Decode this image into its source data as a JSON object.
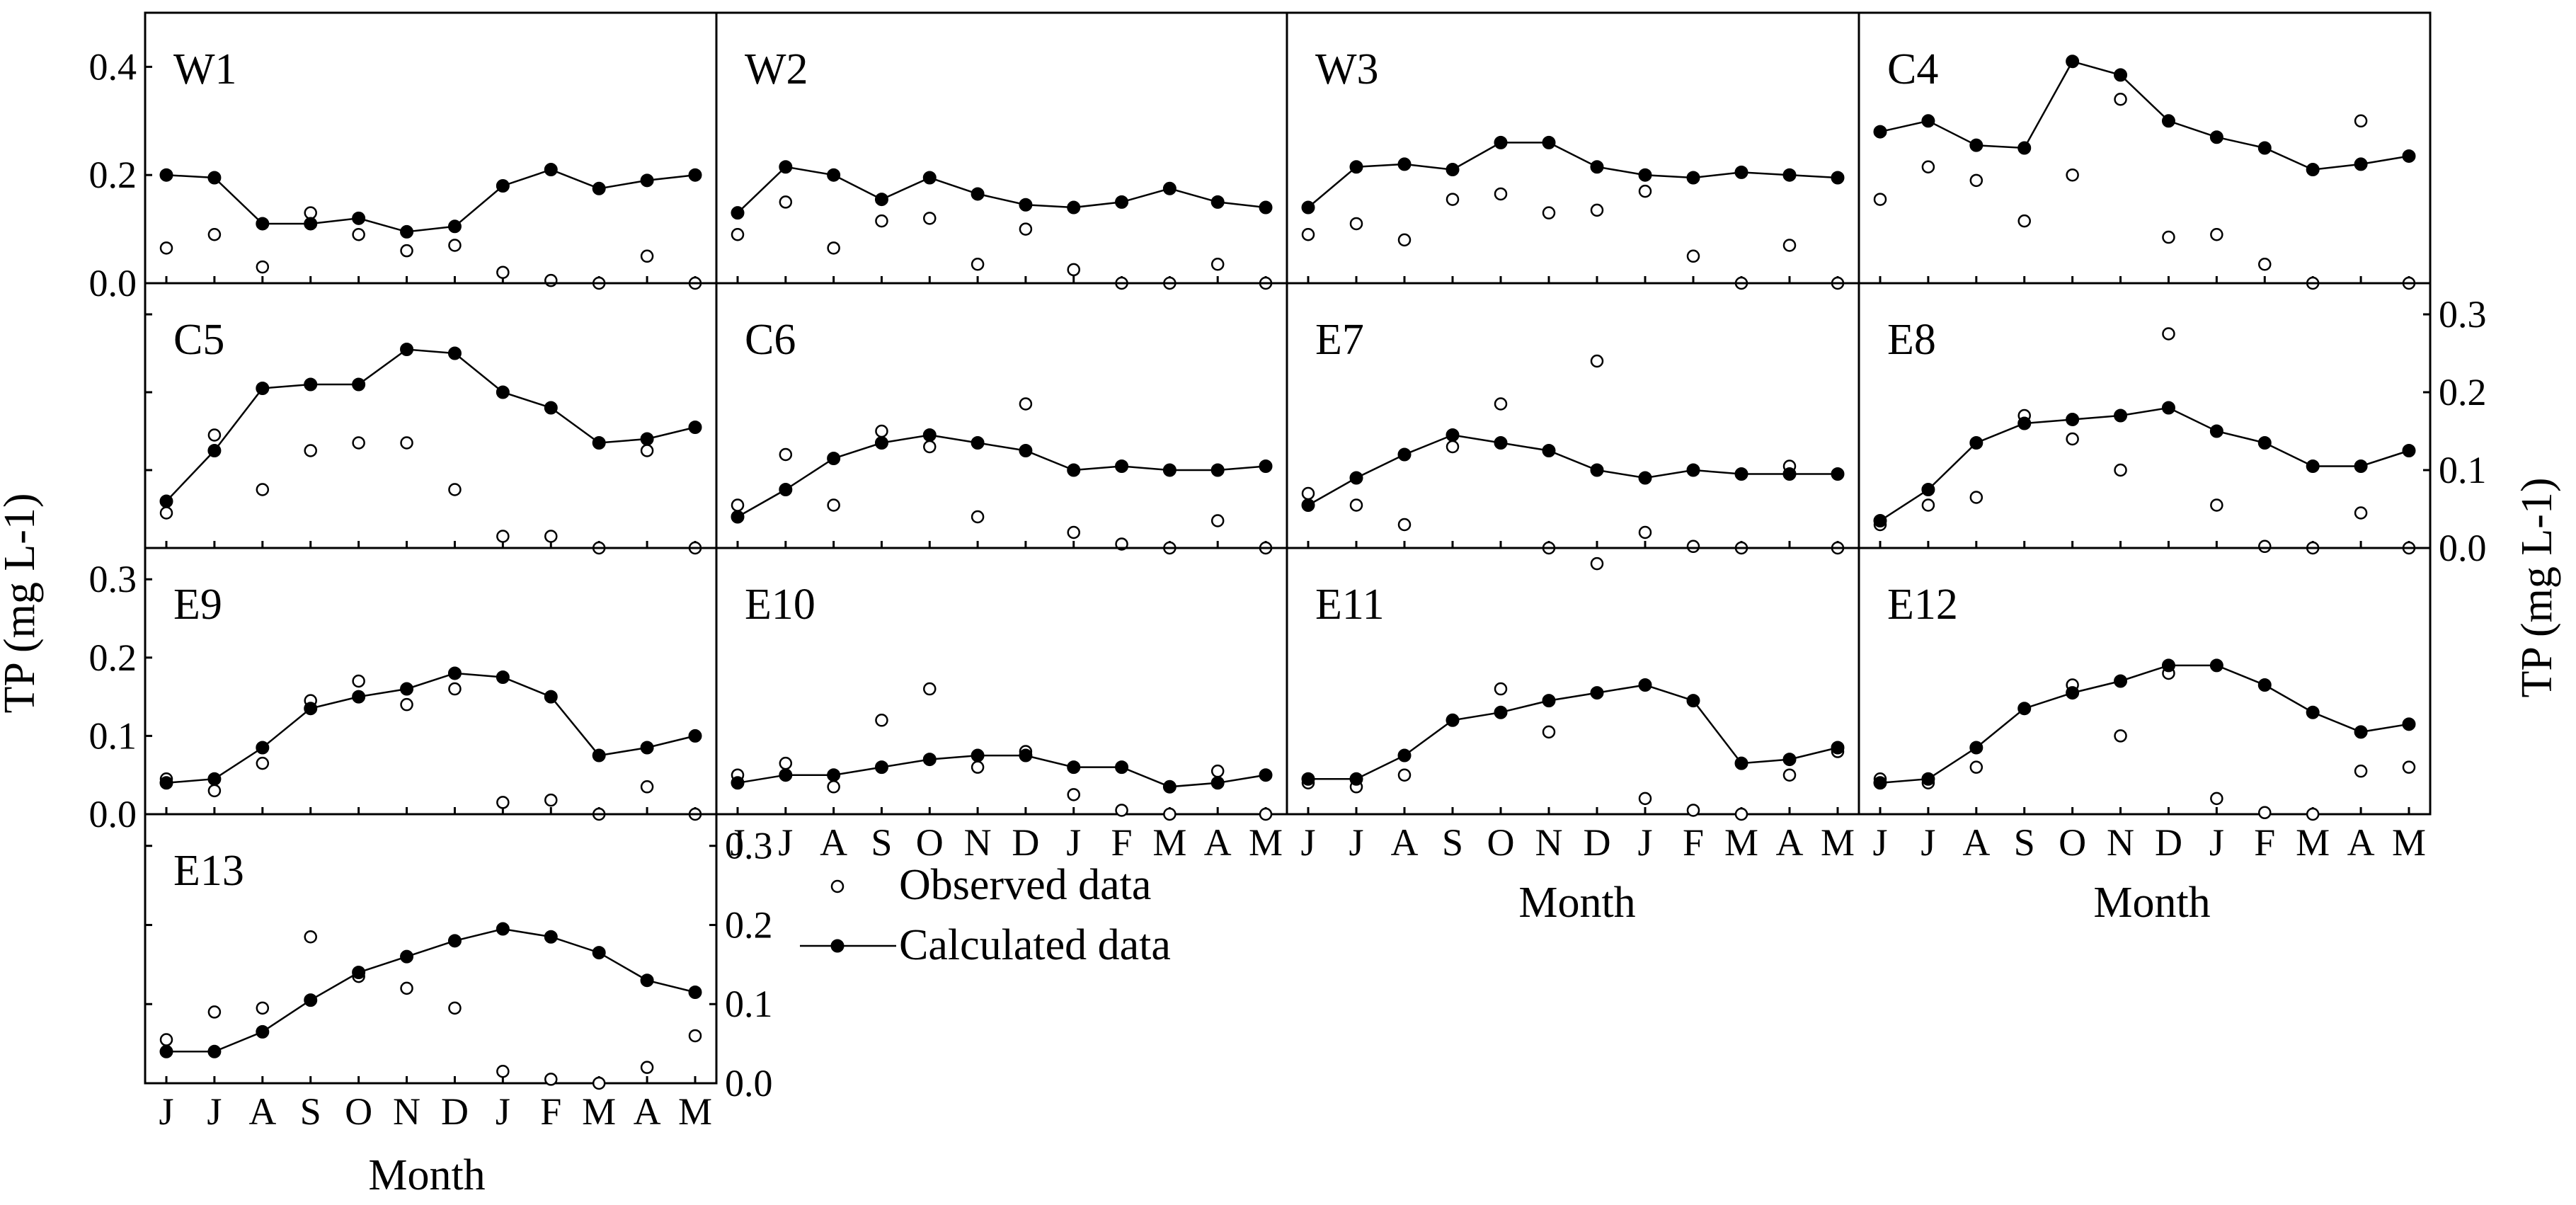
{
  "chart_data": {
    "type": "scatter",
    "xlabel": "Month",
    "ylabel": "TP (mg L-1)",
    "legend": {
      "placement": "bottom-center",
      "observed_label": "Observed data",
      "calculated_label": "Calculated data"
    },
    "months": [
      "J",
      "J",
      "A",
      "S",
      "O",
      "N",
      "D",
      "J",
      "F",
      "M",
      "A",
      "M"
    ],
    "y_axes": {
      "top_row": {
        "ylim": [
          0,
          0.5
        ],
        "ticks": [
          "0.0",
          "0.2",
          "0.4"
        ],
        "tick_values": [
          0,
          0.2,
          0.4
        ]
      },
      "other_rows": {
        "ylim": [
          0,
          0.34
        ],
        "ticks": [
          "0.0",
          "0.1",
          "0.2",
          "0.3"
        ],
        "tick_values": [
          0,
          0.1,
          0.2,
          0.3
        ]
      }
    },
    "panels": [
      {
        "label": "W1",
        "calculated": [
          0.2,
          0.195,
          0.11,
          0.11,
          0.12,
          0.095,
          0.105,
          0.18,
          0.21,
          0.175,
          0.19,
          0.2
        ],
        "observed": [
          0.065,
          0.09,
          0.03,
          0.13,
          0.09,
          0.06,
          0.07,
          0.02,
          0.005,
          0.0,
          0.05,
          0.0
        ]
      },
      {
        "label": "W2",
        "calculated": [
          0.13,
          0.215,
          0.2,
          0.155,
          0.195,
          0.165,
          0.145,
          0.14,
          0.15,
          0.175,
          0.15,
          0.14
        ],
        "observed": [
          0.09,
          0.15,
          0.065,
          0.115,
          0.12,
          0.035,
          0.1,
          0.025,
          0.0,
          0.0,
          0.035,
          0.0
        ]
      },
      {
        "label": "W3",
        "calculated": [
          0.14,
          0.215,
          0.22,
          0.21,
          0.26,
          0.26,
          0.215,
          0.2,
          0.195,
          0.205,
          0.2,
          0.195
        ],
        "observed": [
          0.09,
          0.11,
          0.08,
          0.155,
          0.165,
          0.13,
          0.135,
          0.17,
          0.05,
          0.0,
          0.07,
          0.0
        ]
      },
      {
        "label": "C4",
        "calculated": [
          0.28,
          0.3,
          0.255,
          0.25,
          0.41,
          0.385,
          0.3,
          0.27,
          0.25,
          0.21,
          0.22,
          0.235
        ],
        "observed": [
          0.155,
          0.215,
          0.19,
          0.115,
          0.2,
          0.34,
          0.085,
          0.09,
          0.035,
          0.0,
          0.3,
          0.0
        ]
      },
      {
        "label": "C5",
        "calculated": [
          0.06,
          0.125,
          0.205,
          0.21,
          0.21,
          0.255,
          0.25,
          0.2,
          0.18,
          0.135,
          0.14,
          0.155
        ],
        "observed": [
          0.045,
          0.145,
          0.075,
          0.125,
          0.135,
          0.135,
          0.075,
          0.015,
          0.015,
          0.0,
          0.125,
          0.0
        ]
      },
      {
        "label": "C6",
        "calculated": [
          0.04,
          0.075,
          0.115,
          0.135,
          0.145,
          0.135,
          0.125,
          0.1,
          0.105,
          0.1,
          0.1,
          0.105
        ],
        "observed": [
          0.055,
          0.12,
          0.055,
          0.15,
          0.13,
          0.04,
          0.185,
          0.02,
          0.005,
          0.0,
          0.035,
          0.0
        ]
      },
      {
        "label": "E7",
        "calculated": [
          0.055,
          0.09,
          0.12,
          0.145,
          0.135,
          0.125,
          0.1,
          0.09,
          0.1,
          0.095,
          0.095,
          0.095
        ],
        "observed": [
          0.07,
          0.055,
          0.03,
          0.13,
          0.185,
          0.0,
          0.24,
          0.02,
          0.002,
          0.0,
          0.105,
          0.0
        ]
      },
      {
        "label": "E8",
        "calculated": [
          0.035,
          0.075,
          0.135,
          0.16,
          0.165,
          0.17,
          0.18,
          0.15,
          0.135,
          0.105,
          0.105,
          0.125
        ],
        "observed": [
          0.03,
          0.055,
          0.065,
          0.17,
          0.14,
          0.1,
          0.275,
          0.055,
          0.002,
          0.0,
          0.045,
          0.0
        ]
      },
      {
        "label": "E9",
        "calculated": [
          0.04,
          0.045,
          0.085,
          0.135,
          0.15,
          0.16,
          0.18,
          0.175,
          0.15,
          0.075,
          0.085,
          0.1
        ],
        "observed": [
          0.045,
          0.03,
          0.065,
          0.145,
          0.17,
          0.14,
          0.16,
          0.015,
          0.018,
          0.0,
          0.035,
          0.0
        ]
      },
      {
        "label": "E10",
        "calculated": [
          0.04,
          0.05,
          0.05,
          0.06,
          0.07,
          0.075,
          0.075,
          0.06,
          0.06,
          0.035,
          0.04,
          0.05
        ],
        "observed": [
          0.05,
          0.065,
          0.035,
          0.12,
          0.16,
          0.06,
          0.08,
          0.025,
          0.005,
          0.0,
          0.055,
          0.0
        ]
      },
      {
        "label": "E11",
        "calculated": [
          0.045,
          0.045,
          0.075,
          0.12,
          0.13,
          0.145,
          0.155,
          0.165,
          0.145,
          0.065,
          0.07,
          0.085
        ],
        "observed": [
          0.04,
          0.035,
          0.05,
          0.12,
          0.16,
          0.105,
          0.32,
          0.02,
          0.005,
          0.0,
          0.05,
          0.08
        ]
      },
      {
        "label": "E12",
        "calculated": [
          0.04,
          0.045,
          0.085,
          0.135,
          0.155,
          0.17,
          0.19,
          0.19,
          0.165,
          0.13,
          0.105,
          0.115
        ],
        "observed": [
          0.045,
          0.04,
          0.06,
          0.135,
          0.165,
          0.1,
          0.18,
          0.02,
          0.002,
          0.0,
          0.055,
          0.06
        ]
      },
      {
        "label": "E13",
        "calculated": [
          0.04,
          0.04,
          0.065,
          0.105,
          0.14,
          0.16,
          0.18,
          0.195,
          0.185,
          0.165,
          0.13,
          0.115
        ],
        "observed": [
          0.055,
          0.09,
          0.095,
          0.185,
          0.135,
          0.12,
          0.095,
          0.015,
          0.005,
          0.0,
          0.02,
          0.06
        ]
      }
    ]
  }
}
